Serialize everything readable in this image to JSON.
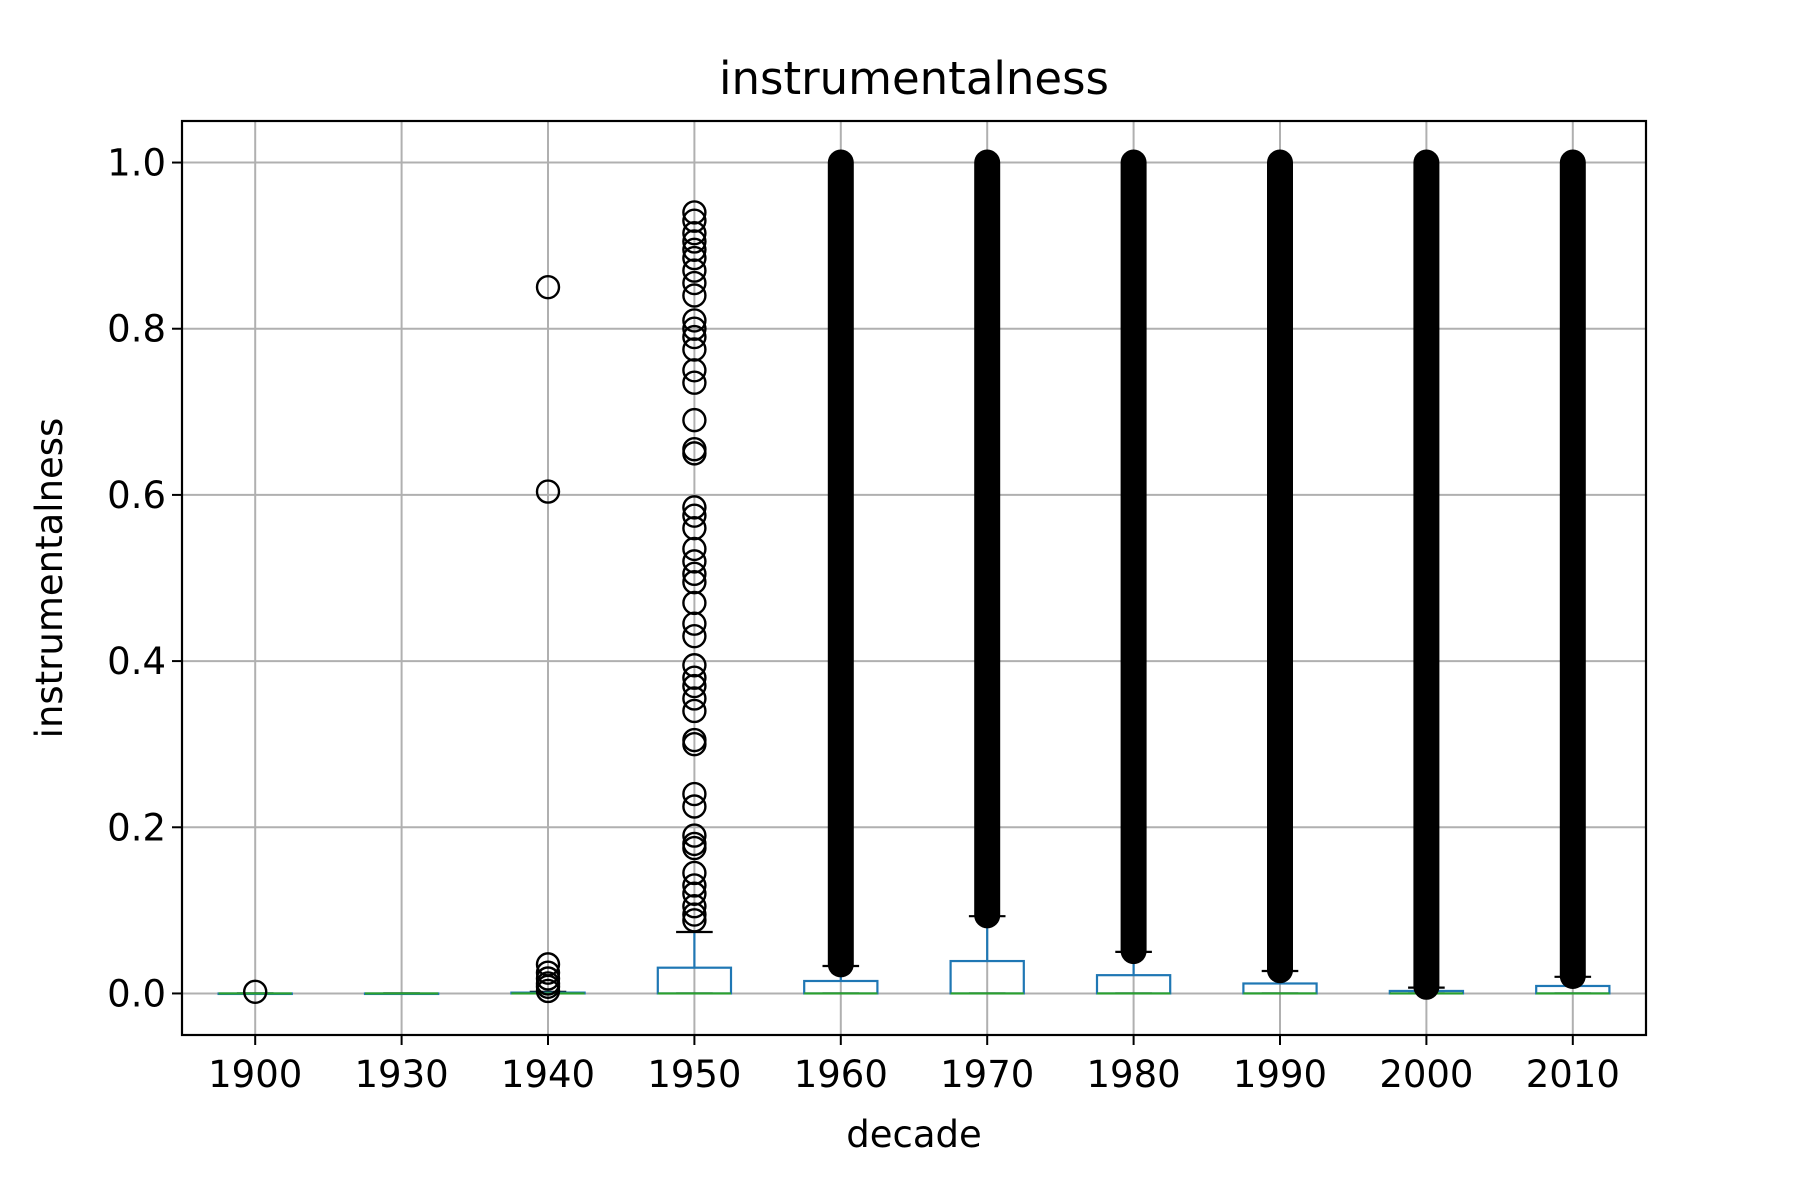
{
  "chart_data": {
    "type": "box",
    "title": "instrumentalness",
    "xlabel": "decade",
    "ylabel": "instrumentalness",
    "categories": [
      "1900",
      "1930",
      "1940",
      "1950",
      "1960",
      "1970",
      "1980",
      "1990",
      "2000",
      "2010"
    ],
    "ylim": [
      -0.05,
      1.05
    ],
    "yticks": [
      "0.0",
      "0.2",
      "0.4",
      "0.6",
      "0.8",
      "1.0"
    ],
    "grid": true,
    "colors": {
      "box": "#1f77b4",
      "median": "#2ca02c",
      "outlier": "#000000",
      "grid": "#b0b0b0"
    },
    "boxes": [
      {
        "category": "1900",
        "q1": 0.0,
        "median": 0.0,
        "q3": 0.0,
        "whisker_low": 0.0,
        "whisker_high": 0.0,
        "outliers": [
          0.002
        ]
      },
      {
        "category": "1930",
        "q1": 0.0,
        "median": 0.0,
        "q3": 0.0,
        "whisker_low": 0.0,
        "whisker_high": 0.0,
        "outliers": []
      },
      {
        "category": "1940",
        "q1": 0.0,
        "median": 0.0,
        "q3": 0.001,
        "whisker_low": 0.0,
        "whisker_high": 0.002,
        "outliers": [
          0.85,
          0.604,
          0.035,
          0.025,
          0.018,
          0.012,
          0.008,
          0.003
        ]
      },
      {
        "category": "1950",
        "q1": 0.0,
        "median": 0.0,
        "q3": 0.031,
        "whisker_low": 0.0,
        "whisker_high": 0.074,
        "outliers": [
          0.94,
          0.93,
          0.915,
          0.905,
          0.895,
          0.885,
          0.87,
          0.855,
          0.84,
          0.81,
          0.8,
          0.79,
          0.775,
          0.75,
          0.735,
          0.69,
          0.655,
          0.65,
          0.585,
          0.575,
          0.56,
          0.535,
          0.52,
          0.505,
          0.495,
          0.47,
          0.445,
          0.43,
          0.395,
          0.38,
          0.37,
          0.355,
          0.34,
          0.305,
          0.3,
          0.24,
          0.225,
          0.19,
          0.18,
          0.175,
          0.145,
          0.13,
          0.12,
          0.105,
          0.095,
          0.088
        ]
      },
      {
        "category": "1960",
        "q1": 0.0,
        "median": 0.0,
        "q3": 0.015,
        "whisker_low": 0.0,
        "whisker_high": 0.033,
        "outlier_range": [
          0.035,
          1.0
        ]
      },
      {
        "category": "1970",
        "q1": 0.0,
        "median": 0.0,
        "q3": 0.039,
        "whisker_low": 0.0,
        "whisker_high": 0.093,
        "outlier_range": [
          0.094,
          1.0
        ]
      },
      {
        "category": "1980",
        "q1": 0.0,
        "median": 0.0,
        "q3": 0.022,
        "whisker_low": 0.0,
        "whisker_high": 0.05,
        "outlier_range": [
          0.051,
          1.0
        ]
      },
      {
        "category": "1990",
        "q1": 0.0,
        "median": 0.0,
        "q3": 0.012,
        "whisker_low": 0.0,
        "whisker_high": 0.027,
        "outlier_range": [
          0.028,
          1.0
        ]
      },
      {
        "category": "2000",
        "q1": 0.0,
        "median": 0.0,
        "q3": 0.003,
        "whisker_low": 0.0,
        "whisker_high": 0.007,
        "outlier_range": [
          0.008,
          1.0
        ]
      },
      {
        "category": "2010",
        "q1": 0.0,
        "median": 0.0,
        "q3": 0.009,
        "whisker_low": 0.0,
        "whisker_high": 0.02,
        "outlier_range": [
          0.021,
          1.0
        ]
      }
    ]
  }
}
